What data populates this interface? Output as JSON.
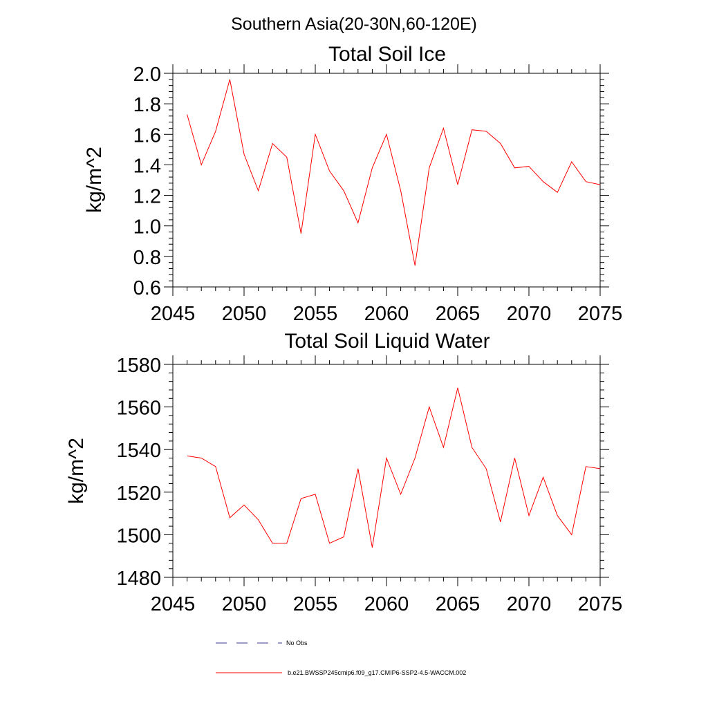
{
  "suptitle": "Southern Asia(20-30N,60-120E)",
  "colors": {
    "series": "#ff0000",
    "obs": "#3a3a8c",
    "axis": "#000000"
  },
  "chart_data": [
    {
      "type": "line",
      "title": "Total Soil Ice",
      "ylabel": "kg/m^2",
      "xlabel": "",
      "xlim": [
        2045,
        2075
      ],
      "ylim": [
        0.6,
        2.0
      ],
      "xticks": [
        "2045",
        "2050",
        "2055",
        "2060",
        "2065",
        "2070",
        "2075"
      ],
      "yticks": [
        "0.6",
        "0.8",
        "1.0",
        "1.2",
        "1.4",
        "1.6",
        "1.8",
        "2.0"
      ],
      "x": [
        2046,
        2047,
        2048,
        2049,
        2050,
        2051,
        2052,
        2053,
        2054,
        2055,
        2056,
        2057,
        2058,
        2059,
        2060,
        2061,
        2062,
        2063,
        2064,
        2065,
        2066,
        2067,
        2068,
        2069,
        2070,
        2071,
        2072,
        2073,
        2074,
        2075
      ],
      "series": [
        {
          "name": "b.e21.BWSSP245cmip6.f09_g17.CMIP6-SSP2-4.5-WACCM.002",
          "values": [
            1.73,
            1.4,
            1.62,
            1.96,
            1.47,
            1.23,
            1.54,
            1.45,
            0.95,
            1.6,
            1.36,
            1.23,
            1.02,
            1.38,
            1.6,
            1.23,
            0.74,
            1.38,
            1.64,
            1.27,
            1.63,
            1.62,
            1.54,
            1.38,
            1.39,
            1.29,
            1.22,
            1.42,
            1.29,
            1.27
          ]
        }
      ]
    },
    {
      "type": "line",
      "title": "Total Soil Liquid Water",
      "ylabel": "kg/m^2",
      "xlabel": "",
      "xlim": [
        2045,
        2075
      ],
      "ylim": [
        1480,
        1580
      ],
      "xticks": [
        "2045",
        "2050",
        "2055",
        "2060",
        "2065",
        "2070",
        "2075"
      ],
      "yticks": [
        "1480",
        "1500",
        "1520",
        "1540",
        "1560",
        "1580"
      ],
      "x": [
        2046,
        2047,
        2048,
        2049,
        2050,
        2051,
        2052,
        2053,
        2054,
        2055,
        2056,
        2057,
        2058,
        2059,
        2060,
        2061,
        2062,
        2063,
        2064,
        2065,
        2066,
        2067,
        2068,
        2069,
        2070,
        2071,
        2072,
        2073,
        2074,
        2075
      ],
      "series": [
        {
          "name": "b.e21.BWSSP245cmip6.f09_g17.CMIP6-SSP2-4.5-WACCM.002",
          "values": [
            1537,
            1536,
            1532,
            1508,
            1514,
            1507,
            1496,
            1496,
            1517,
            1519,
            1496,
            1499,
            1531,
            1494,
            1536,
            1519,
            1536,
            1560,
            1541,
            1569,
            1541,
            1531,
            1506,
            1536,
            1509,
            1527,
            1509,
            1500,
            1532,
            1531
          ]
        }
      ]
    }
  ],
  "legend": {
    "placement": "bottom-center",
    "entries": [
      {
        "label": "No Obs",
        "style": "dashed"
      },
      {
        "label": "b.e21.BWSSP245cmip6.f09_g17.CMIP6-SSP2-4.5-WACCM.002",
        "style": "solid"
      }
    ]
  }
}
